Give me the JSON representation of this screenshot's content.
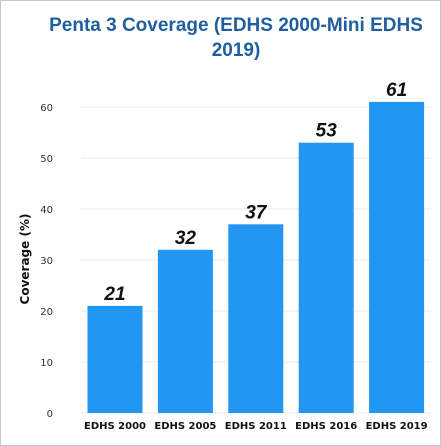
{
  "chart_data": {
    "type": "bar",
    "title_line1": "Penta 3 Coverage (EDHS 2000-Mini EDHS",
    "title_line2": "2019)",
    "xlabel": "",
    "ylabel": "Coverage (%)",
    "categories": [
      "EDHS 2000",
      "EDHS 2005",
      "EDHS 2011",
      "EDHS 2016",
      "EDHS 2019"
    ],
    "values": [
      21,
      32,
      37,
      53,
      61
    ],
    "ylim": [
      0,
      65
    ],
    "yticks": [
      0,
      10,
      20,
      30,
      40,
      50,
      60
    ],
    "grid": true,
    "bar_color": "#2196f3",
    "title_color": "#1f5fa0"
  }
}
